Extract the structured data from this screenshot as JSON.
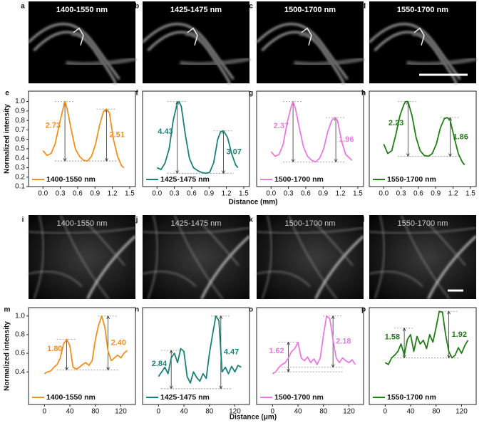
{
  "images": [
    {
      "letter": "a",
      "label": "1400-1550 nm"
    },
    {
      "letter": "b",
      "label": "1425-1475 nm"
    },
    {
      "letter": "c",
      "label": "1500-1700 nm"
    },
    {
      "letter": "d",
      "label": "1550-1700 nm"
    },
    {
      "letter": "i",
      "label": "1400-1550 nm"
    },
    {
      "letter": "j",
      "label": "1425-1475 nm"
    },
    {
      "letter": "k",
      "label": "1500-1700 nm"
    },
    {
      "letter": "l",
      "label": "1550-1700 nm"
    }
  ],
  "axis_titles": [
    {
      "y": "Normalized intensity",
      "x": "Distance (mm)"
    },
    {
      "y": "Normalized intensity",
      "x": "Distance (μm)"
    }
  ],
  "chart_data": [
    {
      "type": "line",
      "letter": "e",
      "xlim": [
        -0.25,
        1.6
      ],
      "ylim": [
        0.1,
        1.11
      ],
      "xticks": [
        {
          "value": 0,
          "label": "0.0"
        },
        0.3,
        0.6,
        0.9,
        1.2,
        1.5
      ],
      "yticks": [
        0.1,
        0.2,
        0.3,
        0.4,
        0.5,
        0.6,
        0.7,
        0.8,
        0.9,
        {
          "value": 1,
          "label": "1.0"
        }
      ],
      "x": [
        0,
        0.07,
        0.14,
        0.21,
        0.28,
        0.35,
        0.38,
        0.42,
        0.49,
        0.56,
        0.63,
        0.7,
        0.77,
        0.84,
        0.91,
        0.98,
        1.05,
        1.1,
        1.15,
        1.22,
        1.29,
        1.36,
        1.4
      ],
      "series": [
        {
          "name": "1400-1550 nm",
          "color": "#f0901e",
          "values": [
            0.48,
            0.43,
            0.45,
            0.55,
            0.75,
            0.93,
            1.0,
            0.92,
            0.7,
            0.5,
            0.42,
            0.38,
            0.37,
            0.42,
            0.55,
            0.75,
            0.9,
            0.92,
            0.88,
            0.6,
            0.42,
            0.32,
            0.3
          ]
        }
      ],
      "arrows": [
        {
          "x": 0.38,
          "y": [
            1.0,
            0.37
          ]
        },
        {
          "x": 1.1,
          "y": [
            0.92,
            0.37
          ]
        }
      ],
      "annotations": [
        "2.73",
        "2.51"
      ]
    },
    {
      "type": "line",
      "letter": "f",
      "xlim": [
        -0.25,
        1.6
      ],
      "ylim": [
        0.1,
        1.11
      ],
      "xticks": [
        {
          "value": 0,
          "label": "0.0"
        },
        0.3,
        0.6,
        0.9,
        1.2,
        1.5
      ],
      "x": [
        0,
        0.07,
        0.14,
        0.21,
        0.28,
        0.35,
        0.38,
        0.42,
        0.49,
        0.56,
        0.63,
        0.7,
        0.77,
        0.84,
        0.91,
        0.98,
        1.05,
        1.1,
        1.15,
        1.22,
        1.29,
        1.36,
        1.4
      ],
      "series": [
        {
          "name": "1425-1475 nm",
          "color": "#1b7f7a",
          "values": [
            0.3,
            0.28,
            0.35,
            0.5,
            0.8,
            0.98,
            1.0,
            0.95,
            0.65,
            0.4,
            0.3,
            0.27,
            0.25,
            0.24,
            0.25,
            0.35,
            0.6,
            0.68,
            0.69,
            0.62,
            0.45,
            0.33,
            0.3
          ]
        }
      ],
      "arrows": [
        {
          "x": 0.35,
          "y": [
            1.0,
            0.24
          ]
        },
        {
          "x": 1.15,
          "y": [
            0.69,
            0.24
          ]
        }
      ],
      "annotations": [
        "4.43",
        "3.07"
      ]
    },
    {
      "type": "line",
      "letter": "g",
      "xlim": [
        -0.25,
        1.6
      ],
      "ylim": [
        0.1,
        1.11
      ],
      "xticks": [
        {
          "value": 0,
          "label": "0.0"
        },
        0.3,
        0.6,
        0.9,
        1.2,
        1.5
      ],
      "x": [
        0,
        0.07,
        0.14,
        0.21,
        0.28,
        0.35,
        0.38,
        0.42,
        0.49,
        0.56,
        0.63,
        0.7,
        0.77,
        0.84,
        0.91,
        0.98,
        1.05,
        1.1,
        1.15,
        1.22,
        1.29,
        1.36,
        1.4
      ],
      "series": [
        {
          "name": "1500-1700 nm",
          "color": "#e87ae0",
          "values": [
            0.47,
            0.42,
            0.44,
            0.55,
            0.78,
            0.95,
            1.0,
            0.93,
            0.72,
            0.52,
            0.42,
            0.38,
            0.36,
            0.4,
            0.5,
            0.68,
            0.8,
            0.83,
            0.8,
            0.58,
            0.44,
            0.4,
            0.38
          ]
        }
      ],
      "arrows": [
        {
          "x": 0.38,
          "y": [
            1.0,
            0.36
          ]
        },
        {
          "x": 1.12,
          "y": [
            0.83,
            0.36
          ]
        }
      ],
      "annotations": [
        "2.37",
        "1.96"
      ]
    },
    {
      "type": "line",
      "letter": "h",
      "xlim": [
        -0.25,
        1.6
      ],
      "ylim": [
        0.1,
        1.11
      ],
      "xticks": [
        {
          "value": 0,
          "label": "0.0"
        },
        0.3,
        0.6,
        0.9,
        1.2,
        1.5
      ],
      "x": [
        0,
        0.07,
        0.14,
        0.21,
        0.28,
        0.35,
        0.38,
        0.42,
        0.49,
        0.56,
        0.63,
        0.7,
        0.77,
        0.84,
        0.91,
        0.98,
        1.05,
        1.1,
        1.15,
        1.22,
        1.29,
        1.36,
        1.4
      ],
      "series": [
        {
          "name": "1550-1700 nm",
          "color": "#237d16",
          "values": [
            0.55,
            0.45,
            0.48,
            0.65,
            0.85,
            0.97,
            1.0,
            1.0,
            0.85,
            0.62,
            0.48,
            0.43,
            0.42,
            0.45,
            0.55,
            0.72,
            0.82,
            0.83,
            0.8,
            0.62,
            0.45,
            0.36,
            0.33
          ]
        }
      ],
      "arrows": [
        {
          "x": 0.42,
          "y": [
            1.0,
            0.42
          ]
        },
        {
          "x": 1.15,
          "y": [
            0.83,
            0.42
          ]
        }
      ],
      "annotations": [
        "2.23",
        "1.86"
      ]
    },
    {
      "type": "line",
      "letter": "m",
      "xlim": [
        -25,
        143
      ],
      "ylim": [
        0.05,
        1.09
      ],
      "xticks": [
        0,
        40,
        80,
        120
      ],
      "yticks": [
        0.4,
        0.6,
        0.8,
        {
          "value": 1,
          "label": "1.0"
        }
      ],
      "x": [
        0,
        5,
        10,
        15,
        20,
        25,
        30,
        35,
        40,
        45,
        50,
        55,
        60,
        65,
        70,
        75,
        80,
        85,
        90,
        95,
        100,
        105,
        110,
        115,
        120,
        125,
        130
      ],
      "series": [
        {
          "name": "1400-1550 nm",
          "color": "#f0901e",
          "values": [
            0.38,
            0.4,
            0.41,
            0.45,
            0.48,
            0.55,
            0.7,
            0.75,
            0.68,
            0.45,
            0.43,
            0.45,
            0.48,
            0.5,
            0.47,
            0.52,
            0.75,
            0.9,
            1.0,
            0.88,
            0.62,
            0.52,
            0.55,
            0.58,
            0.55,
            0.6,
            0.63
          ]
        }
      ],
      "arrows": [
        {
          "x": 35,
          "y": [
            0.75,
            0.42
          ]
        },
        {
          "x": 100,
          "y": [
            1.0,
            0.42
          ]
        }
      ],
      "annotations": [
        "1.80",
        "2.40"
      ]
    },
    {
      "type": "line",
      "letter": "n",
      "xlim": [
        -25,
        143
      ],
      "ylim": [
        0.05,
        1.09
      ],
      "xticks": [
        0,
        40,
        80,
        120
      ],
      "x": [
        0,
        5,
        10,
        15,
        20,
        25,
        30,
        35,
        40,
        45,
        50,
        55,
        60,
        65,
        70,
        75,
        80,
        85,
        90,
        95,
        100,
        105,
        110,
        115,
        120,
        125,
        130
      ],
      "series": [
        {
          "name": "1425-1475 nm",
          "color": "#1b7f7a",
          "values": [
            0.35,
            0.4,
            0.45,
            0.38,
            0.55,
            0.6,
            0.5,
            0.65,
            0.62,
            0.35,
            0.28,
            0.4,
            0.34,
            0.3,
            0.38,
            0.33,
            0.6,
            0.8,
            1.0,
            0.95,
            0.4,
            0.45,
            0.38,
            0.46,
            0.4,
            0.47,
            0.45
          ]
        }
      ],
      "arrows": [
        {
          "x": 20,
          "y": [
            0.63,
            0.22
          ]
        },
        {
          "x": 98,
          "y": [
            1.0,
            0.22
          ]
        }
      ],
      "annotations": [
        "2.84",
        "4.47"
      ]
    },
    {
      "type": "line",
      "letter": "o",
      "xlim": [
        -25,
        143
      ],
      "ylim": [
        0.05,
        1.09
      ],
      "xticks": [
        0,
        40,
        80,
        120
      ],
      "x": [
        0,
        5,
        10,
        15,
        20,
        25,
        30,
        35,
        40,
        45,
        50,
        55,
        60,
        65,
        70,
        75,
        80,
        85,
        90,
        95,
        100,
        105,
        110,
        115,
        120,
        125,
        130
      ],
      "series": [
        {
          "name": "1500-1700 nm",
          "color": "#e87ae0",
          "values": [
            0.38,
            0.4,
            0.45,
            0.48,
            0.5,
            0.55,
            0.62,
            0.65,
            0.72,
            0.55,
            0.52,
            0.56,
            0.5,
            0.54,
            0.48,
            0.55,
            0.8,
            1.0,
            0.97,
            0.75,
            0.55,
            0.5,
            0.55,
            0.52,
            0.5,
            0.53,
            0.48
          ]
        }
      ],
      "arrows": [
        {
          "x": 25,
          "y": [
            0.72,
            0.4
          ]
        },
        {
          "x": 95,
          "y": [
            1.0,
            0.45
          ]
        }
      ],
      "annotations": [
        "1.62",
        "2.18"
      ]
    },
    {
      "type": "line",
      "letter": "p",
      "xlim": [
        -25,
        143
      ],
      "ylim": [
        0.05,
        1.09
      ],
      "xticks": [
        0,
        40,
        80,
        120
      ],
      "x": [
        0,
        5,
        10,
        15,
        20,
        25,
        30,
        35,
        40,
        45,
        50,
        55,
        60,
        65,
        70,
        75,
        80,
        85,
        90,
        95,
        100,
        105,
        110,
        115,
        120,
        125,
        130
      ],
      "series": [
        {
          "name": "1550-1700 nm",
          "color": "#237d16",
          "values": [
            0.5,
            0.48,
            0.55,
            0.58,
            0.62,
            0.7,
            0.58,
            0.75,
            0.8,
            0.62,
            0.78,
            0.7,
            0.74,
            0.65,
            0.8,
            0.72,
            0.88,
            1.05,
            1.04,
            0.8,
            0.62,
            0.55,
            0.58,
            0.66,
            0.6,
            0.68,
            0.74
          ]
        }
      ],
      "arrows": [
        {
          "x": 30,
          "y": [
            0.87,
            0.55
          ]
        },
        {
          "x": 100,
          "y": [
            1.05,
            0.55
          ]
        }
      ],
      "annotations": [
        "1.58",
        "1.92"
      ]
    }
  ]
}
